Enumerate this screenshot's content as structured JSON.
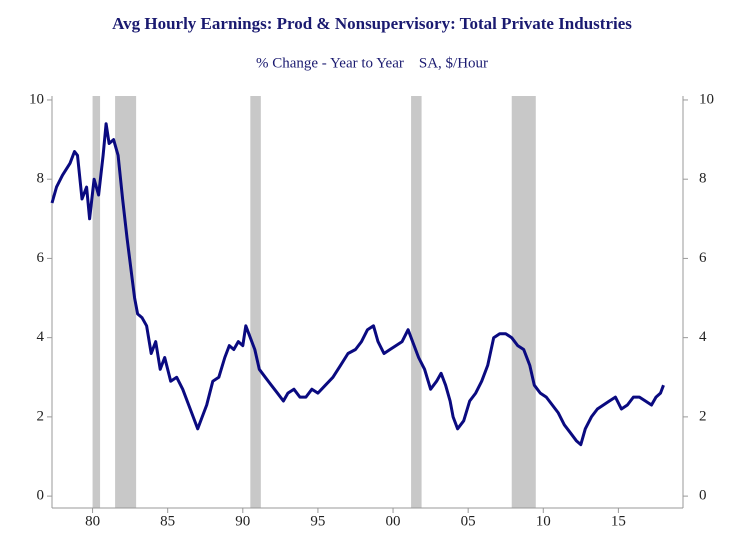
{
  "chart_data": {
    "type": "line",
    "title": "Avg Hourly Earnings: Prod & Nonsupervisory: Total Private Industries",
    "subtitle": "% Change - Year to Year    SA, $/Hour",
    "x": [
      1977.3,
      1977.6,
      1978.0,
      1978.5,
      1978.8,
      1979.0,
      1979.3,
      1979.6,
      1979.8,
      1980.1,
      1980.4,
      1980.7,
      1980.9,
      1981.1,
      1981.4,
      1981.7,
      1982.0,
      1982.3,
      1982.6,
      1982.8,
      1983.0,
      1983.3,
      1983.6,
      1983.9,
      1984.2,
      1984.5,
      1984.8,
      1985.2,
      1985.6,
      1986.0,
      1986.4,
      1986.7,
      1987.0,
      1987.3,
      1987.6,
      1988.0,
      1988.4,
      1988.8,
      1989.1,
      1989.4,
      1989.7,
      1990.0,
      1990.2,
      1990.5,
      1990.8,
      1991.1,
      1991.5,
      1991.9,
      1992.3,
      1992.7,
      1993.0,
      1993.4,
      1993.8,
      1994.2,
      1994.6,
      1995.0,
      1995.5,
      1996.0,
      1996.5,
      1997.0,
      1997.5,
      1997.9,
      1998.3,
      1998.7,
      1999.0,
      1999.4,
      1999.8,
      2000.2,
      2000.6,
      2001.0,
      2001.3,
      2001.7,
      2002.1,
      2002.5,
      2002.9,
      2003.2,
      2003.5,
      2003.8,
      2004.0,
      2004.3,
      2004.7,
      2005.1,
      2005.5,
      2005.9,
      2006.3,
      2006.7,
      2007.1,
      2007.5,
      2007.9,
      2008.3,
      2008.7,
      2009.1,
      2009.4,
      2009.8,
      2010.2,
      2010.6,
      2011.0,
      2011.4,
      2011.8,
      2012.2,
      2012.5,
      2012.8,
      2013.2,
      2013.6,
      2014.0,
      2014.4,
      2014.8,
      2015.2,
      2015.6,
      2016.0,
      2016.4,
      2016.8,
      2017.2,
      2017.5,
      2017.8,
      2018.0
    ],
    "series": [
      {
        "name": "Avg Hourly Earnings",
        "color": "#0a0a80",
        "values": [
          7.4,
          7.8,
          8.1,
          8.4,
          8.7,
          8.6,
          7.5,
          7.8,
          7.0,
          8.0,
          7.6,
          8.6,
          9.4,
          8.9,
          9.0,
          8.6,
          7.5,
          6.5,
          5.6,
          5.0,
          4.6,
          4.5,
          4.3,
          3.6,
          3.9,
          3.2,
          3.5,
          2.9,
          3.0,
          2.7,
          2.3,
          2.0,
          1.7,
          2.0,
          2.3,
          2.9,
          3.0,
          3.5,
          3.8,
          3.7,
          3.9,
          3.8,
          4.3,
          4.0,
          3.7,
          3.2,
          3.0,
          2.8,
          2.6,
          2.4,
          2.6,
          2.7,
          2.5,
          2.5,
          2.7,
          2.6,
          2.8,
          3.0,
          3.3,
          3.6,
          3.7,
          3.9,
          4.2,
          4.3,
          3.9,
          3.6,
          3.7,
          3.8,
          3.9,
          4.2,
          3.9,
          3.5,
          3.2,
          2.7,
          2.9,
          3.1,
          2.8,
          2.4,
          2.0,
          1.7,
          1.9,
          2.4,
          2.6,
          2.9,
          3.3,
          4.0,
          4.1,
          4.1,
          4.0,
          3.8,
          3.7,
          3.3,
          2.8,
          2.6,
          2.5,
          2.3,
          2.1,
          1.8,
          1.6,
          1.4,
          1.3,
          1.7,
          2.0,
          2.2,
          2.3,
          2.4,
          2.5,
          2.2,
          2.3,
          2.5,
          2.5,
          2.4,
          2.3,
          2.5,
          2.6,
          2.8
        ]
      }
    ],
    "shaded_ranges": [
      [
        1980.0,
        1980.5
      ],
      [
        1981.5,
        1982.9
      ],
      [
        1990.5,
        1991.2
      ],
      [
        2001.2,
        2001.9
      ],
      [
        2007.9,
        2009.5
      ]
    ],
    "shade_color": "#c8c8c8",
    "xlim": [
      1977.3,
      2019.3
    ],
    "xticks": [
      {
        "value": 1980,
        "label": "80"
      },
      {
        "value": 1985,
        "label": "85"
      },
      {
        "value": 1990,
        "label": "90"
      },
      {
        "value": 1995,
        "label": "95"
      },
      {
        "value": 2000,
        "label": "00"
      },
      {
        "value": 2005,
        "label": "05"
      },
      {
        "value": 2010,
        "label": "10"
      },
      {
        "value": 2015,
        "label": "15"
      }
    ],
    "ylim": [
      -0.3,
      10.1
    ],
    "yticks": [
      0,
      2,
      4,
      6,
      8,
      10
    ],
    "y2lim": [
      -0.3,
      10.1
    ],
    "y2ticks": [
      0,
      2,
      4,
      6,
      8,
      10
    ]
  }
}
